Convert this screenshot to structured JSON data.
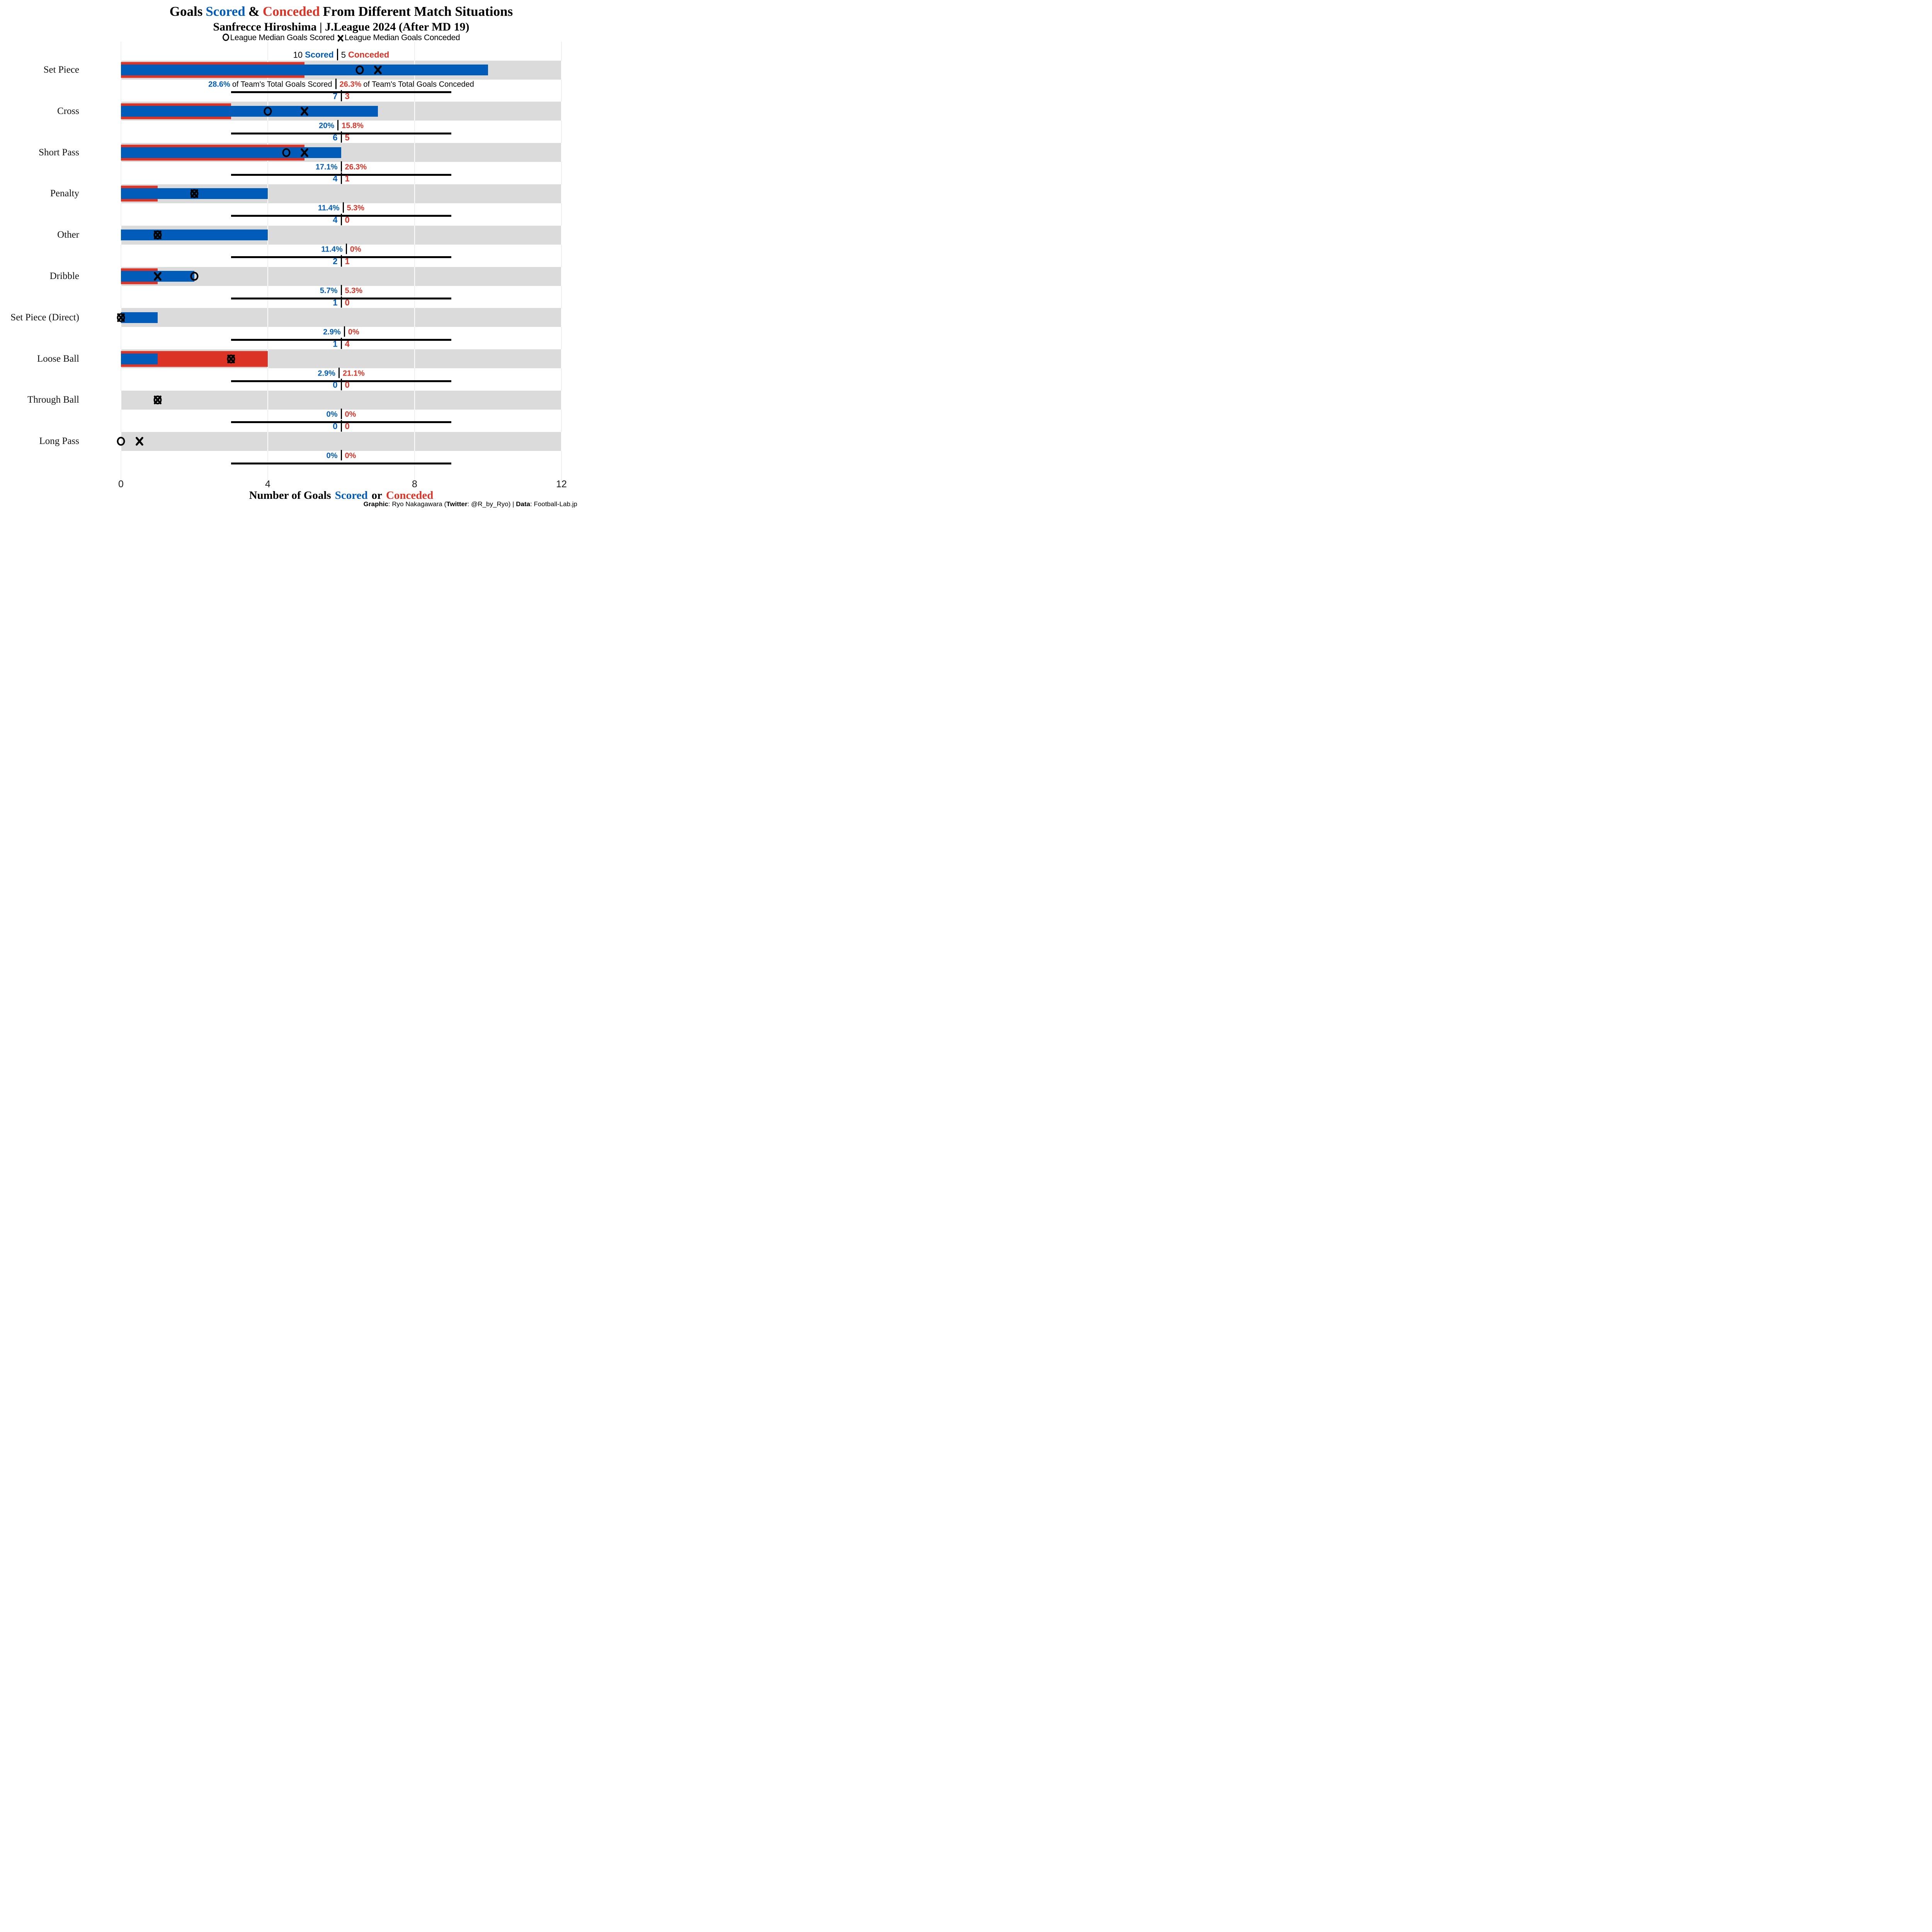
{
  "title": {
    "part1": "Goals",
    "scored_word": "Scored",
    "amp": "&",
    "conceded_word": "Conceded",
    "part2": "From Different Match Situations"
  },
  "subtitle": "Sanfrecce Hiroshima | J.League 2024 (After MD 19)",
  "legend": {
    "median_scored": "League Median Goals Scored",
    "median_conceded": "League Median Goals Conceded"
  },
  "first_block": {
    "scored_word": "Scored",
    "conceded_word": "Conceded",
    "scored_pct_suffix": "of Team's Total Goals Scored",
    "conceded_pct_suffix": "of Team's Total Goals Conceded"
  },
  "axis": {
    "ticks": [
      "0",
      "4",
      "8",
      "12"
    ],
    "title_prefix": "Number of Goals",
    "title_scored": "Scored",
    "title_or": "or",
    "title_conceded": "Conceded"
  },
  "footer": {
    "graphic_label": "Graphic",
    "graphic_value": ": Ryo Nakagawara (",
    "twitter_label": "Twitter",
    "twitter_value": ": @R_by_Ryo) | ",
    "data_label": "Data",
    "data_value": ": Football-Lab.jp"
  },
  "colors": {
    "scored_blue": "#005CB8",
    "conceded_red": "#DC3327",
    "track_grey": "#DBDBDB"
  },
  "chart_data": {
    "type": "bar",
    "orientation": "horizontal",
    "title": "Goals Scored & Conceded From Different Match Situations",
    "subtitle": "Sanfrecce Hiroshima | J.League 2024 (After MD 19)",
    "xlabel": "Number of Goals Scored or Conceded",
    "xlim": [
      0,
      12
    ],
    "x_ticks": [
      0,
      4,
      8,
      12
    ],
    "grid": "vertical gridlines at 0, 4, 8, 12",
    "legend_position": "top",
    "marker_legend": {
      "circle": "League Median Goals Scored",
      "x": "League Median Goals Conceded"
    },
    "rows": [
      {
        "category": "Set Piece",
        "scored": 10,
        "conceded": 5,
        "scored_pct": "28.6%",
        "conceded_pct": "26.3%",
        "median_scored": 6.5,
        "median_conceded": 7
      },
      {
        "category": "Cross",
        "scored": 7,
        "conceded": 3,
        "scored_pct": "20%",
        "conceded_pct": "15.8%",
        "median_scored": 4,
        "median_conceded": 5
      },
      {
        "category": "Short Pass",
        "scored": 6,
        "conceded": 5,
        "scored_pct": "17.1%",
        "conceded_pct": "26.3%",
        "median_scored": 4.5,
        "median_conceded": 5
      },
      {
        "category": "Penalty",
        "scored": 4,
        "conceded": 1,
        "scored_pct": "11.4%",
        "conceded_pct": "5.3%",
        "median_scored": 2,
        "median_conceded": 2
      },
      {
        "category": "Other",
        "scored": 4,
        "conceded": 0,
        "scored_pct": "11.4%",
        "conceded_pct": "0%",
        "median_scored": 1,
        "median_conceded": 1
      },
      {
        "category": "Dribble",
        "scored": 2,
        "conceded": 1,
        "scored_pct": "5.7%",
        "conceded_pct": "5.3%",
        "median_scored": 2,
        "median_conceded": 1
      },
      {
        "category": "Set Piece (Direct)",
        "scored": 1,
        "conceded": 0,
        "scored_pct": "2.9%",
        "conceded_pct": "0%",
        "median_scored": 0,
        "median_conceded": 0
      },
      {
        "category": "Loose Ball",
        "scored": 1,
        "conceded": 4,
        "scored_pct": "2.9%",
        "conceded_pct": "21.1%",
        "median_scored": 3,
        "median_conceded": 3
      },
      {
        "category": "Through Ball",
        "scored": 0,
        "conceded": 0,
        "scored_pct": "0%",
        "conceded_pct": "0%",
        "median_scored": 1,
        "median_conceded": 1
      },
      {
        "category": "Long Pass",
        "scored": 0,
        "conceded": 0,
        "scored_pct": "0%",
        "conceded_pct": "0%",
        "median_scored": 0,
        "median_conceded": 0.5
      }
    ]
  }
}
